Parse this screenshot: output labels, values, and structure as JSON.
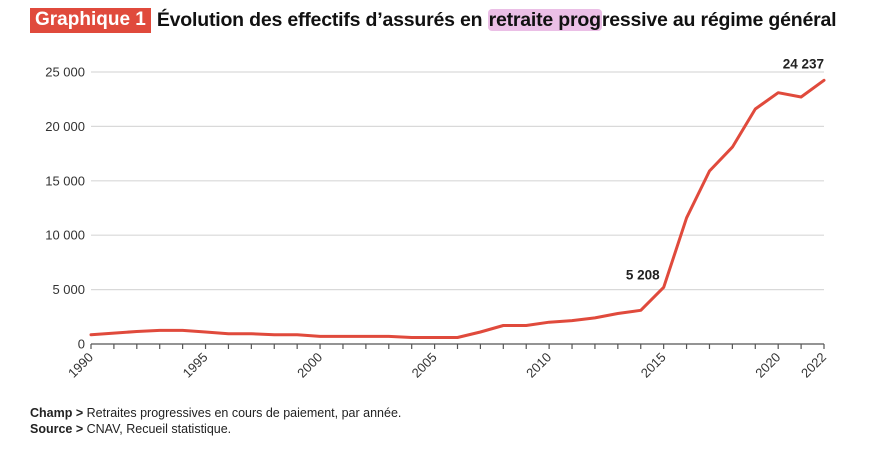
{
  "header": {
    "badge": "Graphique 1",
    "title_pre": "Évolution des effectifs d’assurés en ",
    "title_highlight": "retraite prog",
    "title_post": "ressive au régime général"
  },
  "colors": {
    "line": "#e04a3c",
    "badge": "#e04a3c",
    "highlight": "#ebbfe6",
    "grid": "#d9d9d9"
  },
  "chart_data": {
    "type": "line",
    "title": "Évolution des effectifs d’assurés en retraite progressive au régime général",
    "xlabel": "",
    "ylabel": "",
    "x": [
      1990,
      1991,
      1992,
      1993,
      1994,
      1995,
      1996,
      1997,
      1998,
      1999,
      2000,
      2001,
      2002,
      2003,
      2004,
      2005,
      2006,
      2007,
      2008,
      2009,
      2010,
      2011,
      2012,
      2013,
      2014,
      2015,
      2016,
      2017,
      2018,
      2019,
      2020,
      2021,
      2022
    ],
    "series": [
      {
        "name": "Effectifs en retraite progressive",
        "values": [
          850,
          1000,
          1150,
          1250,
          1250,
          1100,
          950,
          950,
          850,
          850,
          700,
          700,
          700,
          700,
          600,
          600,
          600,
          1100,
          1700,
          1700,
          2000,
          2150,
          2400,
          2800,
          3100,
          5208,
          11600,
          15900,
          18100,
          21600,
          23100,
          22700,
          24237
        ]
      }
    ],
    "xticks_labeled": [
      1990,
      1995,
      2000,
      2005,
      2010,
      2015,
      2020,
      2022
    ],
    "xtick_labels": [
      "1990",
      "1995",
      "2000",
      "2005",
      "2010",
      "2015",
      "2020",
      "2022"
    ],
    "yticks": [
      0,
      5000,
      10000,
      15000,
      20000,
      25000
    ],
    "ytick_labels": [
      "0",
      "5 000",
      "10 000",
      "15 000",
      "20 000",
      "25 000"
    ],
    "ylim": [
      0,
      25000
    ],
    "xlim": [
      1990,
      2022
    ],
    "grid": "horizontal",
    "annotations": [
      {
        "x": 2015,
        "y": 5208,
        "text": "5 208"
      },
      {
        "x": 2022,
        "y": 24237,
        "text": "24 237"
      }
    ]
  },
  "notes": {
    "champ_label": "Champ >",
    "champ_text": " Retraites progressives en cours de paiement, par année.",
    "source_label": "Source >",
    "source_text": " CNAV, Recueil statistique."
  }
}
